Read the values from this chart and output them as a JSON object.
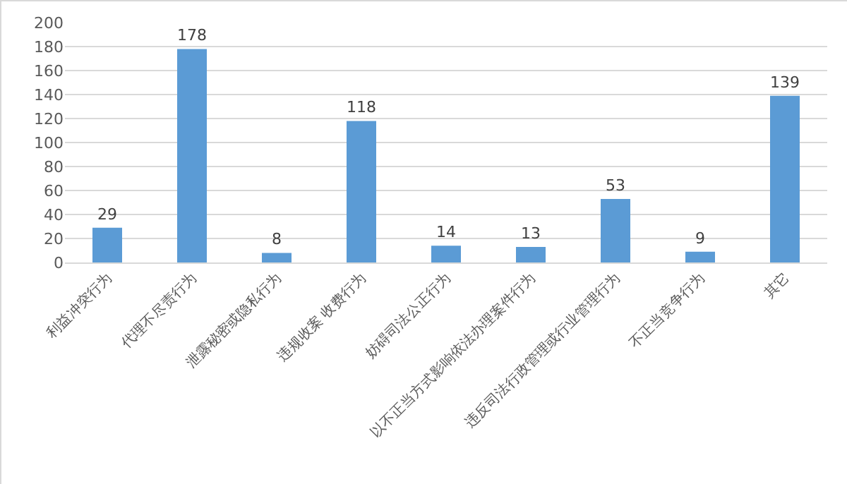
{
  "chart_data": {
    "type": "bar",
    "categories": [
      "利益冲突行为",
      "代理不尽责行为",
      "泄露秘密或隐私行为",
      "违规收案 收费行为",
      "妨碍司法公正行为",
      "以不正当方式影响依法办理案件行为",
      "违反司法行政管理或行业管理行为",
      "不正当竞争行为",
      "其它"
    ],
    "values": [
      29,
      178,
      8,
      118,
      14,
      13,
      53,
      9,
      139
    ],
    "color": "#5b9bd5",
    "ylim": [
      0,
      200
    ],
    "yticks": [
      0,
      20,
      40,
      60,
      80,
      100,
      120,
      140,
      160,
      180,
      200
    ],
    "grid": "y",
    "data_labels": true
  }
}
